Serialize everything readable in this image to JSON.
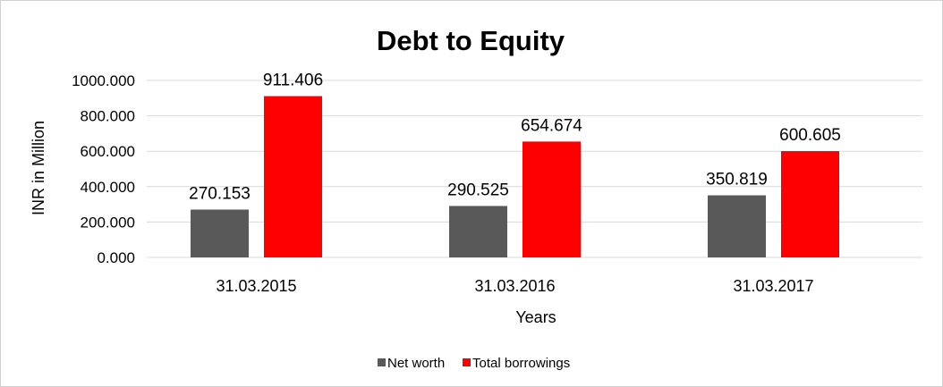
{
  "chart_data": {
    "type": "bar",
    "title": "Debt to Equity",
    "xlabel": "Years",
    "ylabel": "INR in Million",
    "categories": [
      "31.03.2015",
      "31.03.2016",
      "31.03.2017"
    ],
    "series": [
      {
        "name": "Net worth",
        "color": "#595959",
        "values": [
          270.153,
          290.525,
          350.819
        ],
        "labels": [
          "270.153",
          "290.525",
          "350.819"
        ]
      },
      {
        "name": "Total borrowings",
        "color": "#ff0000",
        "values": [
          911.406,
          654.674,
          600.605
        ],
        "labels": [
          "911.406",
          "654.674",
          "600.605"
        ]
      }
    ],
    "ylim": [
      0,
      1000
    ],
    "yticks": [
      "0.000",
      "200.000",
      "400.000",
      "600.000",
      "800.000",
      "1000.000"
    ],
    "ytick_values": [
      0,
      200,
      400,
      600,
      800,
      1000
    ],
    "grid": true,
    "legend_position": "bottom-center"
  }
}
